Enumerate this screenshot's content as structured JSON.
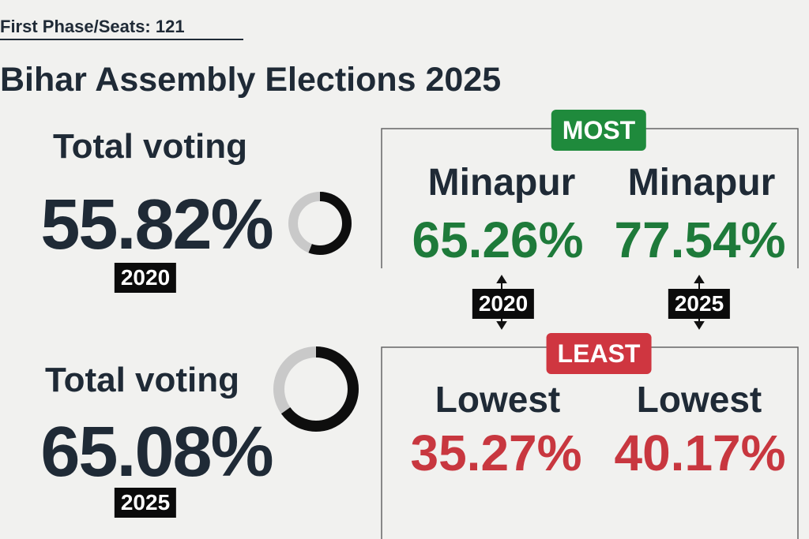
{
  "header": {
    "kicker": "First Phase/Seats: 121",
    "title": "Bihar Assembly Elections 2025"
  },
  "totals": [
    {
      "label": "Total voting",
      "value": "55.82%",
      "year": "2020"
    },
    {
      "label": "Total voting",
      "value": "65.08%",
      "year": "2025"
    }
  ],
  "most": {
    "badge": "MOST",
    "items": [
      {
        "name": "Minapur",
        "value": "65.26%"
      },
      {
        "name": "Minapur",
        "value": "77.54%"
      }
    ],
    "years": [
      "2020",
      "2025"
    ]
  },
  "least": {
    "badge": "LEAST",
    "items": [
      {
        "name": "Lowest",
        "value": "35.27%"
      },
      {
        "name": "Lowest",
        "value": "40.17%"
      }
    ]
  }
}
